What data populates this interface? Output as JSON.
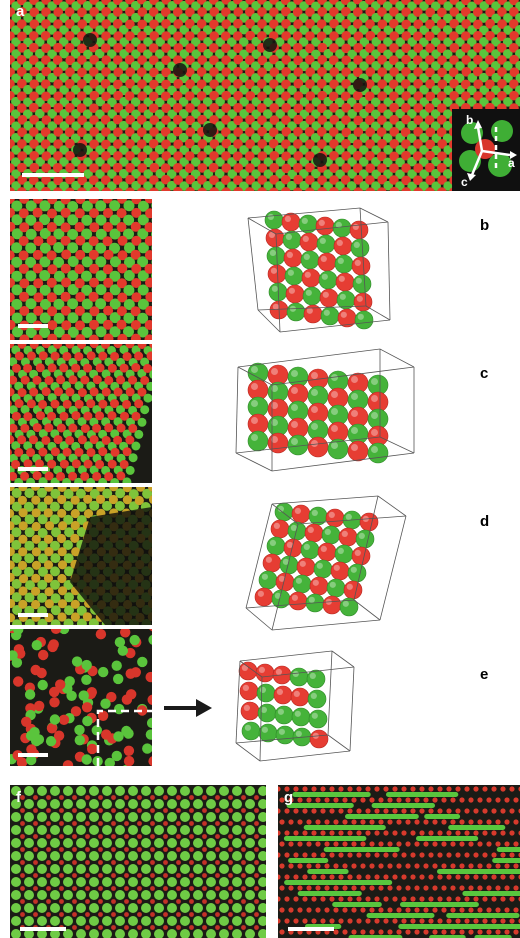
{
  "panels": {
    "a": {
      "label": "a"
    },
    "b": {
      "label": "b"
    },
    "c": {
      "label": "c"
    },
    "d": {
      "label": "d"
    },
    "e": {
      "label": "e"
    },
    "f": {
      "label": "f"
    },
    "g": {
      "label": "g"
    }
  },
  "axes": {
    "a": "a",
    "b": "b",
    "c": "c"
  },
  "colors": {
    "red": "#e8342a",
    "green": "#52c23a",
    "dark": "#1b1b16"
  },
  "icons": {
    "arrow": "arrow-right-icon"
  }
}
